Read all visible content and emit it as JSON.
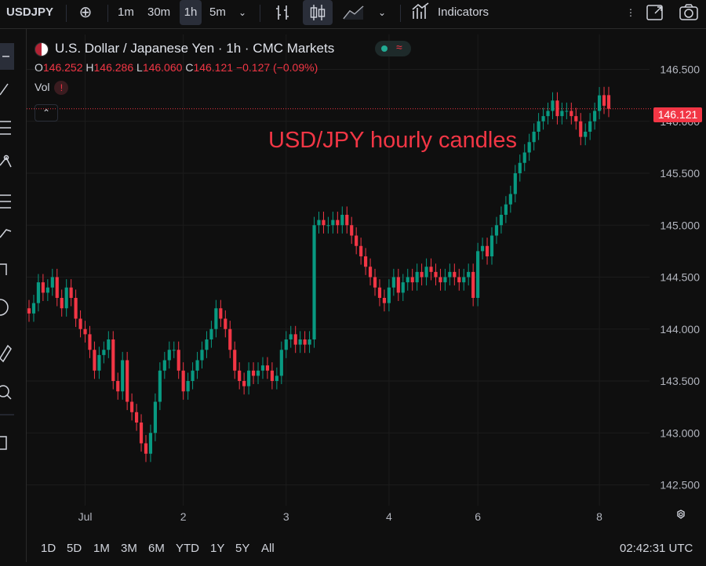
{
  "toolbar": {
    "symbol": "USDJPY",
    "intervals": [
      "1m",
      "30m",
      "1h",
      "5m"
    ],
    "selected_interval": "1h",
    "indicators_label": "Indicators"
  },
  "legend": {
    "title": "U.S. Dollar / Japanese Yen · 1h · CMC Markets",
    "o_label": "O",
    "o": "146.252",
    "h_label": "H",
    "h": "146.286",
    "l_label": "L",
    "l": "146.060",
    "c_label": "C",
    "c": "146.121",
    "change": "−0.127 (−0.09%)",
    "vol_label": "Vol",
    "vol_badge": "!"
  },
  "annotation": "USD/JPY hourly candles",
  "timeframes": [
    "1D",
    "5D",
    "1M",
    "3M",
    "6M",
    "YTD",
    "1Y",
    "5Y",
    "All"
  ],
  "clock": "02:42:31 UTC",
  "colors": {
    "up": "#089981",
    "down": "#f23645",
    "background": "#0f0f0f",
    "grid": "#1c1c1c"
  },
  "chart_data": {
    "type": "candlestick",
    "title": "U.S. Dollar / Japanese Yen · 1h · CMC Markets",
    "last_price": "146.121",
    "ylim": [
      142.3,
      146.7
    ],
    "y_ticks": [
      "146.500",
      "146.000",
      "145.500",
      "145.000",
      "144.500",
      "144.000",
      "143.500",
      "143.000",
      "142.500"
    ],
    "x_ticks": [
      "Jul",
      "2",
      "3",
      "4",
      "6",
      "8"
    ],
    "x_tick_candle_index": [
      12,
      33,
      55,
      77,
      96,
      122
    ],
    "close": [
      144.15,
      144.25,
      144.45,
      144.35,
      144.4,
      144.5,
      144.3,
      144.2,
      144.4,
      144.3,
      144.1,
      144.0,
      143.95,
      143.8,
      143.6,
      143.75,
      143.8,
      143.9,
      143.5,
      143.4,
      143.7,
      143.3,
      143.2,
      143.1,
      142.9,
      142.8,
      143.0,
      143.3,
      143.6,
      143.7,
      143.8,
      143.8,
      143.6,
      143.4,
      143.5,
      143.6,
      143.7,
      143.8,
      143.9,
      144.0,
      144.2,
      144.1,
      144.0,
      143.8,
      143.6,
      143.5,
      143.45,
      143.6,
      143.55,
      143.6,
      143.65,
      143.6,
      143.5,
      143.55,
      143.8,
      143.9,
      143.95,
      143.85,
      143.9,
      143.85,
      143.9,
      145.0,
      145.05,
      145.0,
      145.0,
      145.05,
      145.0,
      145.1,
      145.0,
      144.9,
      144.8,
      144.7,
      144.6,
      144.5,
      144.4,
      144.3,
      144.25,
      144.4,
      144.5,
      144.35,
      144.45,
      144.5,
      144.45,
      144.55,
      144.5,
      144.6,
      144.55,
      144.5,
      144.45,
      144.5,
      144.55,
      144.5,
      144.45,
      144.5,
      144.55,
      144.3,
      144.75,
      144.8,
      144.7,
      144.9,
      145.0,
      145.1,
      145.2,
      145.3,
      145.5,
      145.6,
      145.7,
      145.8,
      145.9,
      146.0,
      146.05,
      146.1,
      146.2,
      146.05,
      146.1,
      146.1,
      146.05,
      146.0,
      145.85,
      145.9,
      146.0,
      146.1,
      146.25,
      146.15,
      146.121
    ],
    "open": [
      144.2,
      144.15,
      144.25,
      144.45,
      144.35,
      144.4,
      144.5,
      144.3,
      144.2,
      144.4,
      144.3,
      144.1,
      144.0,
      143.95,
      143.8,
      143.6,
      143.75,
      143.8,
      143.9,
      143.5,
      143.4,
      143.7,
      143.3,
      143.2,
      143.1,
      142.9,
      142.8,
      143.0,
      143.3,
      143.6,
      143.7,
      143.8,
      143.8,
      143.6,
      143.4,
      143.5,
      143.6,
      143.7,
      143.8,
      143.9,
      144.0,
      144.2,
      144.1,
      144.0,
      143.8,
      143.6,
      143.5,
      143.45,
      143.6,
      143.55,
      143.6,
      143.65,
      143.6,
      143.5,
      143.55,
      143.8,
      143.9,
      143.95,
      143.85,
      143.9,
      143.85,
      143.9,
      145.0,
      145.05,
      145.0,
      145.0,
      145.05,
      145.0,
      145.1,
      145.0,
      144.9,
      144.8,
      144.7,
      144.6,
      144.5,
      144.4,
      144.3,
      144.25,
      144.4,
      144.5,
      144.35,
      144.45,
      144.5,
      144.45,
      144.55,
      144.5,
      144.6,
      144.55,
      144.5,
      144.45,
      144.5,
      144.55,
      144.5,
      144.45,
      144.5,
      144.55,
      144.3,
      144.75,
      144.8,
      144.7,
      144.9,
      145.0,
      145.1,
      145.2,
      145.3,
      145.5,
      145.6,
      145.7,
      145.8,
      145.9,
      146.0,
      146.05,
      146.1,
      146.2,
      146.05,
      146.1,
      146.1,
      146.05,
      146.0,
      145.85,
      145.9,
      146.0,
      146.1,
      146.252,
      146.252
    ],
    "high_pad": 0.08,
    "low_pad": 0.08
  }
}
